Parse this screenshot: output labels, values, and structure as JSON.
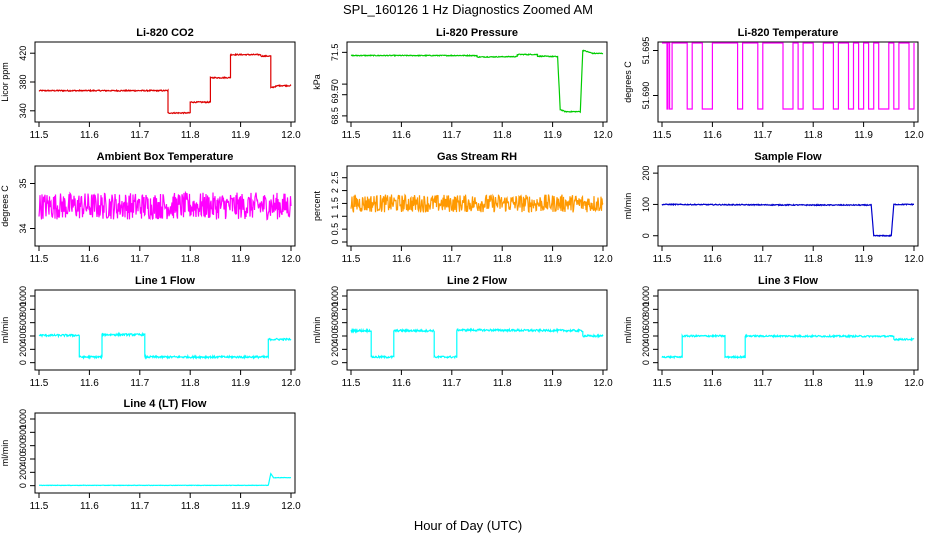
{
  "title": "SPL_160126  1 Hz Diagnostics Zoomed AM",
  "xlabel": "Hour of Day (UTC)",
  "chart_data": [
    {
      "type": "line",
      "title": "Li-820 CO2",
      "ylabel": "Licor ppm",
      "color": "#dd0000",
      "xlim": [
        11.5,
        12.0
      ],
      "ylim": [
        330,
        430
      ],
      "xticks": [
        11.5,
        11.6,
        11.7,
        11.8,
        11.9,
        12.0
      ],
      "yticks": [
        340,
        380,
        420
      ],
      "noise": 0.8,
      "series": [
        [
          11.5,
          368
        ],
        [
          11.756,
          368
        ],
        [
          11.756,
          337
        ],
        [
          11.8,
          337
        ],
        [
          11.8,
          352
        ],
        [
          11.84,
          352
        ],
        [
          11.84,
          386
        ],
        [
          11.88,
          386
        ],
        [
          11.88,
          418
        ],
        [
          11.94,
          418
        ],
        [
          11.94,
          416
        ],
        [
          11.96,
          416
        ],
        [
          11.96,
          372
        ],
        [
          11.975,
          375
        ],
        [
          12.0,
          375
        ]
      ]
    },
    {
      "type": "line",
      "title": "Li-820 Pressure",
      "ylabel": "kPa",
      "color": "#00cc00",
      "xlim": [
        11.5,
        12.0
      ],
      "ylim": [
        68.4,
        71.8
      ],
      "xticks": [
        11.5,
        11.6,
        11.7,
        11.8,
        11.9,
        12.0
      ],
      "yticks": [
        68.5,
        69.5,
        70.0,
        71.5
      ],
      "noise": 0.02,
      "series": [
        [
          11.5,
          71.35
        ],
        [
          11.75,
          71.35
        ],
        [
          11.75,
          71.28
        ],
        [
          11.83,
          71.3
        ],
        [
          11.83,
          71.4
        ],
        [
          11.87,
          71.4
        ],
        [
          11.87,
          71.32
        ],
        [
          11.91,
          71.3
        ],
        [
          11.915,
          68.8
        ],
        [
          11.925,
          68.7
        ],
        [
          11.955,
          68.7
        ],
        [
          11.96,
          71.6
        ],
        [
          11.98,
          71.45
        ],
        [
          12.0,
          71.45
        ]
      ]
    },
    {
      "type": "line",
      "title": "Li-820 Temperature",
      "ylabel": "degrees C",
      "color": "#ff00ff",
      "xlim": [
        11.5,
        12.0
      ],
      "ylim": [
        51.6875,
        51.6955
      ],
      "xticks": [
        11.5,
        11.6,
        11.7,
        11.8,
        11.9,
        12.0
      ],
      "yticks": [
        51.69,
        51.695
      ],
      "yticklabels": [
        "51.690",
        "51.695"
      ],
      "noise": 0,
      "levels": [
        51.6885,
        51.6964
      ],
      "switch": [
        11.51,
        11.512,
        11.515,
        11.52,
        11.55,
        11.56,
        11.58,
        11.6,
        11.65,
        11.66,
        11.69,
        11.7,
        11.74,
        11.76,
        11.77,
        11.78,
        11.8,
        11.82,
        11.84,
        11.85,
        11.87,
        11.88,
        11.89,
        11.9,
        11.91,
        11.92,
        11.93,
        11.95,
        11.96,
        11.97,
        11.99,
        12.0
      ]
    },
    {
      "type": "line",
      "title": "Ambient Box Temperature",
      "ylabel": "degrees C",
      "color": "#ff00ff",
      "xlim": [
        11.5,
        12.0
      ],
      "ylim": [
        33.7,
        35.3
      ],
      "xticks": [
        11.5,
        11.6,
        11.7,
        11.8,
        11.9,
        12.0
      ],
      "yticks": [
        34.0,
        35.0
      ],
      "noise": 0.3,
      "series": [
        [
          11.5,
          34.5
        ],
        [
          12.0,
          34.5
        ]
      ]
    },
    {
      "type": "line",
      "title": "Gas Stream RH",
      "ylabel": "percent",
      "color": "#ff9900",
      "xlim": [
        11.5,
        12.0
      ],
      "ylim": [
        0.0,
        2.8
      ],
      "xticks": [
        11.5,
        11.6,
        11.7,
        11.8,
        11.9,
        12.0
      ],
      "yticks": [
        0.0,
        0.5,
        1.0,
        1.5,
        2.0,
        2.5
      ],
      "noise": 0.35,
      "series": [
        [
          11.5,
          1.5
        ],
        [
          12.0,
          1.5
        ]
      ]
    },
    {
      "type": "line",
      "title": "Sample Flow",
      "ylabel": "ml/min",
      "color": "#0000cc",
      "xlim": [
        11.5,
        12.0
      ],
      "ylim": [
        -20,
        210
      ],
      "xticks": [
        11.5,
        11.6,
        11.7,
        11.8,
        11.9,
        12.0
      ],
      "yticks": [
        0,
        100,
        200
      ],
      "noise": 1.5,
      "series": [
        [
          11.5,
          100
        ],
        [
          11.8,
          98
        ],
        [
          11.915,
          98
        ],
        [
          11.92,
          0
        ],
        [
          11.955,
          0
        ],
        [
          11.96,
          100
        ],
        [
          12.0,
          100
        ]
      ]
    },
    {
      "type": "line",
      "title": "Line 1 Flow",
      "ylabel": "ml/min",
      "color": "#00ffff",
      "xlim": [
        11.5,
        12.0
      ],
      "ylim": [
        -50,
        1030
      ],
      "xticks": [
        11.5,
        11.6,
        11.7,
        11.8,
        11.9,
        12.0
      ],
      "yticks": [
        0,
        200,
        400,
        600,
        800,
        1000
      ],
      "noise": 15,
      "series": [
        [
          11.5,
          410
        ],
        [
          11.58,
          410
        ],
        [
          11.58,
          85
        ],
        [
          11.625,
          85
        ],
        [
          11.625,
          420
        ],
        [
          11.71,
          420
        ],
        [
          11.71,
          85
        ],
        [
          11.955,
          85
        ],
        [
          11.955,
          350
        ],
        [
          12.0,
          350
        ]
      ]
    },
    {
      "type": "line",
      "title": "Line 2 Flow",
      "ylabel": "ml/min",
      "color": "#00ffff",
      "xlim": [
        11.5,
        12.0
      ],
      "ylim": [
        -50,
        1030
      ],
      "xticks": [
        11.5,
        11.6,
        11.7,
        11.8,
        11.9,
        12.0
      ],
      "yticks": [
        0,
        200,
        400,
        600,
        800,
        1000
      ],
      "noise": 15,
      "series": [
        [
          11.5,
          480
        ],
        [
          11.54,
          480
        ],
        [
          11.54,
          85
        ],
        [
          11.585,
          85
        ],
        [
          11.585,
          480
        ],
        [
          11.665,
          480
        ],
        [
          11.665,
          85
        ],
        [
          11.71,
          85
        ],
        [
          11.71,
          490
        ],
        [
          11.96,
          480
        ],
        [
          11.96,
          400
        ],
        [
          12.0,
          400
        ]
      ]
    },
    {
      "type": "line",
      "title": "Line 3 Flow",
      "ylabel": "ml/min",
      "color": "#00ffff",
      "xlim": [
        11.5,
        12.0
      ],
      "ylim": [
        -50,
        1030
      ],
      "xticks": [
        11.5,
        11.6,
        11.7,
        11.8,
        11.9,
        12.0
      ],
      "yticks": [
        0,
        200,
        400,
        600,
        800,
        1000
      ],
      "noise": 12,
      "series": [
        [
          11.5,
          85
        ],
        [
          11.54,
          85
        ],
        [
          11.54,
          400
        ],
        [
          11.625,
          400
        ],
        [
          11.625,
          85
        ],
        [
          11.665,
          85
        ],
        [
          11.665,
          400
        ],
        [
          11.96,
          395
        ],
        [
          11.96,
          350
        ],
        [
          12.0,
          350
        ]
      ]
    },
    {
      "type": "line",
      "title": "Line 4 (LT) Flow",
      "ylabel": "ml/min",
      "color": "#00ffff",
      "xlim": [
        11.5,
        12.0
      ],
      "ylim": [
        -50,
        1030
      ],
      "xticks": [
        11.5,
        11.6,
        11.7,
        11.8,
        11.9,
        12.0
      ],
      "yticks": [
        0,
        200,
        400,
        600,
        800,
        1000
      ],
      "noise": 3,
      "series": [
        [
          11.5,
          5
        ],
        [
          11.955,
          5
        ],
        [
          11.96,
          180
        ],
        [
          11.965,
          120
        ],
        [
          12.0,
          120
        ]
      ]
    }
  ]
}
